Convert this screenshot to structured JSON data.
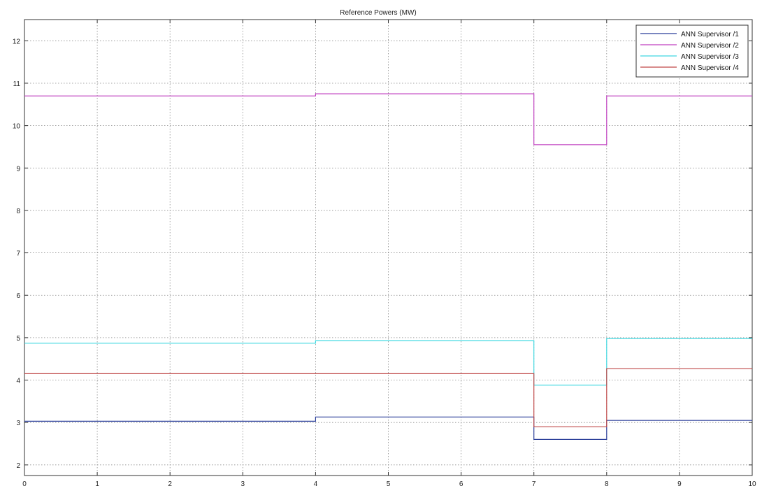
{
  "chart_data": {
    "type": "line",
    "title": "Reference Powers (MW)",
    "xlabel": "",
    "ylabel": "",
    "xlim": [
      0,
      10
    ],
    "ylim": [
      1.75,
      12.5
    ],
    "x_ticks": [
      "0",
      "1",
      "2",
      "3",
      "4",
      "5",
      "6",
      "7",
      "8",
      "9",
      "10"
    ],
    "y_ticks": [
      "2",
      "3",
      "4",
      "5",
      "6",
      "7",
      "8",
      "9",
      "10",
      "11",
      "12"
    ],
    "grid": true,
    "legend_position": "top-right",
    "step": true,
    "series": [
      {
        "name": "ANN Supervisor /1",
        "color": "#2b3f9a",
        "x": [
          0,
          4,
          4,
          7,
          7,
          8,
          8,
          10
        ],
        "y": [
          3.03,
          3.03,
          3.13,
          3.13,
          2.6,
          2.6,
          3.05,
          3.05
        ]
      },
      {
        "name": "ANN Supervisor /2",
        "color": "#c040c0",
        "x": [
          0,
          4,
          4,
          7,
          7,
          8,
          8,
          10
        ],
        "y": [
          10.7,
          10.7,
          10.75,
          10.75,
          9.55,
          9.55,
          10.7,
          10.7
        ]
      },
      {
        "name": "ANN Supervisor /3",
        "color": "#40d8e0",
        "x": [
          0,
          4,
          4,
          7,
          7,
          8,
          8,
          10
        ],
        "y": [
          4.87,
          4.87,
          4.93,
          4.93,
          3.88,
          3.88,
          4.98,
          4.98
        ]
      },
      {
        "name": "ANN Supervisor /4",
        "color": "#c04848",
        "x": [
          0,
          4,
          4,
          7,
          7,
          8,
          8,
          10
        ],
        "y": [
          4.15,
          4.15,
          4.15,
          4.15,
          2.9,
          2.9,
          4.27,
          4.27
        ]
      }
    ]
  }
}
